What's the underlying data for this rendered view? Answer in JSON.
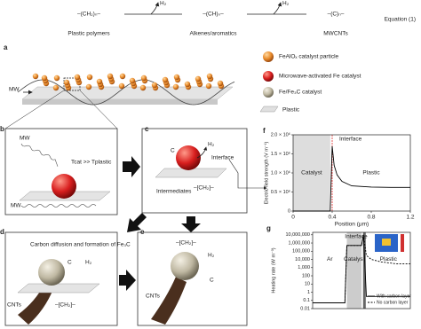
{
  "equation": {
    "reactant": "–(CH₂)ₙ–",
    "reactant_name": "Plastic polymers",
    "byproduct_1": "H₂",
    "intermediate": "–(CH)ₙ–",
    "intermediate_name": "Alkenes/aromatics",
    "byproduct_2": "H₂",
    "product": "–(C)ₙ–",
    "product_name": "MWCNTs",
    "label": "Equation (1)"
  },
  "panel_a": {
    "label": "a",
    "mw": "MW",
    "legend": [
      "FeAlOₓ catalyst particle",
      "Microwave-activated Fe catalyst",
      "Fe/Fe₃C catalyst",
      "Plastic"
    ]
  },
  "panel_b": {
    "label": "b",
    "mw_top": "MW",
    "temperature": "Tcat >> Tplastic",
    "mw_bottom": "MW"
  },
  "panel_c": {
    "label": "c",
    "carbon": "C",
    "hydrogen": "H₂",
    "interface": "Interface",
    "intermediates": "Intermediates",
    "polymer": "–[CH₂]–"
  },
  "panel_d": {
    "label": "d",
    "note": "Carbon diffusion and formation of Fe₃C",
    "carbon": "C",
    "hydrogen": "H₂",
    "cnts": "CNTs",
    "polymer": "–[CH₂]–"
  },
  "panel_e": {
    "label": "e",
    "polymer": "–[CH₂]–",
    "hydrogen": "H₂",
    "carbon": "C",
    "cnts": "CNTs"
  },
  "chart_data": [
    {
      "type": "line",
      "label": "f",
      "y_label": "Electric field strength (V m⁻¹)",
      "x_label": "Position (μm)",
      "x": [
        0,
        0.38,
        0.4,
        0.42,
        0.45,
        0.5,
        0.6,
        0.8,
        1.0,
        1.2
      ],
      "series": [
        {
          "color": "#000000",
          "values": [
            0,
            0,
            1700000,
            1200000,
            950000,
            780000,
            660000,
            630000,
            620000,
            620000
          ]
        }
      ],
      "regions": [
        {
          "name": "Catalyst",
          "x": [
            0,
            0.38
          ],
          "color": "#dddddd"
        },
        {
          "name": "Plastic",
          "x": [
            0.4,
            1.2
          ]
        }
      ],
      "interface": {
        "name": "Interface",
        "x": 0.4,
        "color": "#e03030"
      },
      "xlim": [
        0,
        1.2
      ],
      "xticks": [
        0,
        0.4,
        0.8,
        1.2
      ],
      "ylim": [
        0,
        2000000
      ],
      "yticks": [
        0,
        {
          "value": 500000,
          "label": "0.5 × 10⁶"
        },
        {
          "value": 1000000,
          "label": "1.0 × 10⁶"
        },
        {
          "value": 1500000,
          "label": "1.5 × 10⁶"
        },
        {
          "value": 2000000,
          "label": "2.0 × 10⁶"
        }
      ]
    },
    {
      "type": "line",
      "label": "g",
      "y_label": "Heating rate (W m⁻³)",
      "log_scale": true,
      "x": [
        0,
        0.33,
        0.35,
        0.5,
        0.52,
        0.55,
        0.6,
        0.7,
        0.85,
        1
      ],
      "series": [
        {
          "name": "With carbon layer",
          "color": "#000000",
          "dash": false,
          "values": [
            0.05,
            0.05,
            500000,
            500000,
            10000000,
            0.3,
            0.3,
            0.3,
            0.3,
            0.3
          ]
        },
        {
          "name": "No carbon layer",
          "color": "#000000",
          "dash": true,
          "values": [
            0.05,
            0.05,
            500000,
            500000,
            10000000,
            30000,
            10000,
            5000,
            3000,
            3000
          ]
        }
      ],
      "regions": [
        {
          "name": "Ar",
          "x": [
            0,
            0.35
          ]
        },
        {
          "name": "Catalyst",
          "x": [
            0.35,
            0.5
          ],
          "color": "#cccccc"
        },
        {
          "name": "Plastic",
          "x": [
            0.55,
            1
          ]
        }
      ],
      "interface": {
        "name": "Interface",
        "x": 0.53,
        "color": "#666666"
      },
      "legend": "lower right",
      "xlim": [
        0,
        1
      ],
      "ylim": [
        0.01,
        20000000
      ],
      "yticks": [
        {
          "value": 10000000,
          "label": "10,000,000"
        },
        {
          "value": 1000000,
          "label": "1,000,000"
        },
        {
          "value": 100000,
          "label": "100,000"
        },
        {
          "value": 10000,
          "label": "10,000"
        },
        {
          "value": 1000,
          "label": "1,000"
        },
        100,
        10,
        1,
        0.1,
        0.01
      ]
    }
  ]
}
